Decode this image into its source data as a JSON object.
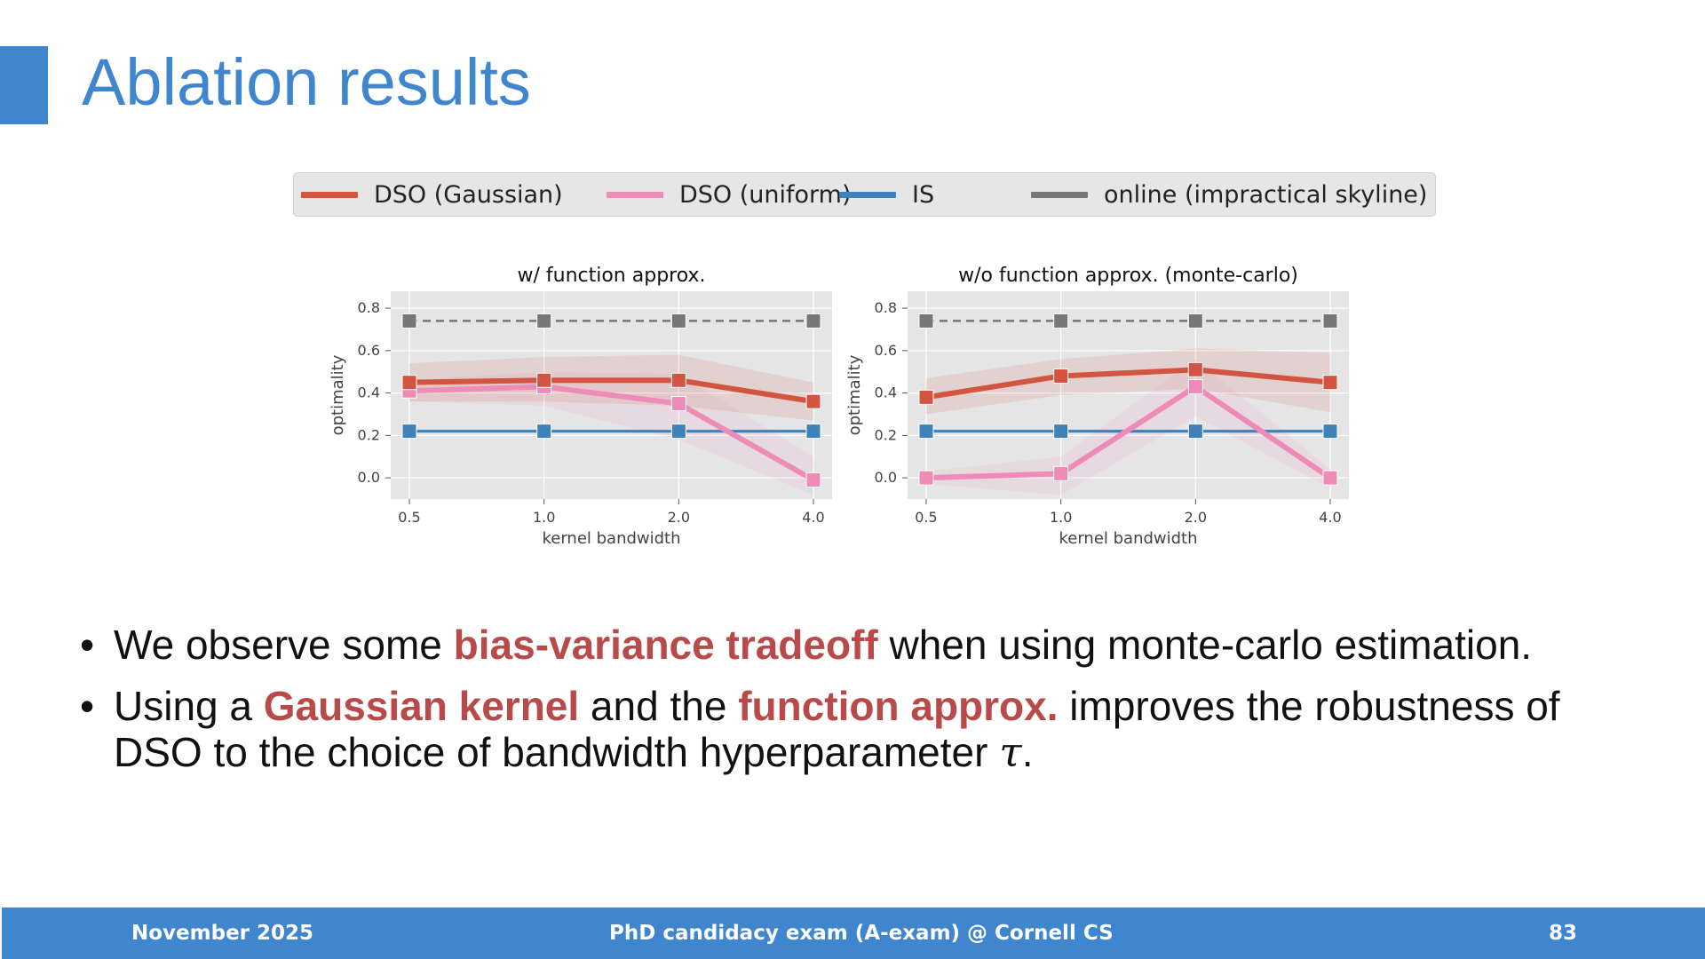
{
  "slide": {
    "title": "Ablation results",
    "accent_color": "#3f86cf",
    "highlight_color": "#b84a4a"
  },
  "legend": [
    {
      "label": "DSO (Gaussian)",
      "color": "#d35441"
    },
    {
      "label": "DSO (uniform)",
      "color": "#ee8bb6"
    },
    {
      "label": "IS",
      "color": "#3f82b9"
    },
    {
      "label": "online (impractical skyline)",
      "color": "#777777"
    }
  ],
  "chart_data": [
    {
      "type": "line",
      "title": "w/ function approx.",
      "xlabel": "kernel bandwidth",
      "ylabel": "optimality",
      "categories": [
        "0.5",
        "1.0",
        "2.0",
        "4.0"
      ],
      "yticks": [
        "0.0",
        "0.2",
        "0.4",
        "0.6",
        "0.8"
      ],
      "ylim": [
        -0.1,
        0.88
      ],
      "grid": true,
      "series": [
        {
          "name": "online (impractical skyline)",
          "color": "#777777",
          "values": [
            0.74,
            0.74,
            0.74,
            0.74
          ],
          "lower": [
            0.74,
            0.74,
            0.74,
            0.74
          ],
          "upper": [
            0.74,
            0.74,
            0.74,
            0.74
          ],
          "dashed": true
        },
        {
          "name": "IS",
          "color": "#3f82b9",
          "values": [
            0.22,
            0.22,
            0.22,
            0.22
          ],
          "lower": [
            0.21,
            0.21,
            0.21,
            0.21
          ],
          "upper": [
            0.23,
            0.23,
            0.23,
            0.23
          ]
        },
        {
          "name": "DSO (uniform)",
          "color": "#ee8bb6",
          "values": [
            0.41,
            0.43,
            0.35,
            -0.01
          ],
          "lower": [
            0.36,
            0.34,
            0.18,
            -0.08
          ],
          "upper": [
            0.46,
            0.5,
            0.49,
            0.1
          ]
        },
        {
          "name": "DSO (Gaussian)",
          "color": "#d35441",
          "values": [
            0.45,
            0.46,
            0.46,
            0.36
          ],
          "lower": [
            0.36,
            0.36,
            0.34,
            0.27
          ],
          "upper": [
            0.54,
            0.57,
            0.58,
            0.45
          ]
        }
      ]
    },
    {
      "type": "line",
      "title": "w/o function approx. (monte-carlo)",
      "xlabel": "kernel bandwidth",
      "ylabel": "optimality",
      "categories": [
        "0.5",
        "1.0",
        "2.0",
        "4.0"
      ],
      "yticks": [
        "0.0",
        "0.2",
        "0.4",
        "0.6",
        "0.8"
      ],
      "ylim": [
        -0.1,
        0.88
      ],
      "grid": true,
      "series": [
        {
          "name": "online (impractical skyline)",
          "color": "#777777",
          "values": [
            0.74,
            0.74,
            0.74,
            0.74
          ],
          "lower": [
            0.74,
            0.74,
            0.74,
            0.74
          ],
          "upper": [
            0.74,
            0.74,
            0.74,
            0.74
          ],
          "dashed": true
        },
        {
          "name": "IS",
          "color": "#3f82b9",
          "values": [
            0.22,
            0.22,
            0.22,
            0.22
          ],
          "lower": [
            0.21,
            0.21,
            0.21,
            0.21
          ],
          "upper": [
            0.23,
            0.23,
            0.23,
            0.23
          ]
        },
        {
          "name": "DSO (uniform)",
          "color": "#ee8bb6",
          "values": [
            0.0,
            0.02,
            0.43,
            0.0
          ],
          "lower": [
            -0.03,
            -0.08,
            0.29,
            -0.05
          ],
          "upper": [
            0.03,
            0.1,
            0.56,
            0.04
          ]
        },
        {
          "name": "DSO (Gaussian)",
          "color": "#d35441",
          "values": [
            0.38,
            0.48,
            0.51,
            0.45
          ],
          "lower": [
            0.3,
            0.39,
            0.42,
            0.31
          ],
          "upper": [
            0.47,
            0.56,
            0.61,
            0.59
          ]
        }
      ]
    }
  ],
  "bullets": [
    {
      "parts": [
        {
          "text": "We observe some ",
          "hl": false
        },
        {
          "text": "bias-variance tradeoff",
          "hl": true
        },
        {
          "text": " when using monte-carlo estimation.",
          "hl": false
        }
      ]
    },
    {
      "parts": [
        {
          "text": "Using a ",
          "hl": false
        },
        {
          "text": "Gaussian kernel",
          "hl": true
        },
        {
          "text": " and the ",
          "hl": false
        },
        {
          "text": "function approx.",
          "hl": true
        },
        {
          "text": " improves the robustness of DSO to the choice of bandwidth hyperparameter ",
          "hl": false
        },
        {
          "text": "τ",
          "math": true
        },
        {
          "text": ".",
          "hl": false
        }
      ]
    }
  ],
  "bullet_symbol": "•",
  "footer": {
    "date": "November 2025",
    "center": "PhD candidacy exam (A-exam) @ Cornell CS",
    "page": "83"
  }
}
